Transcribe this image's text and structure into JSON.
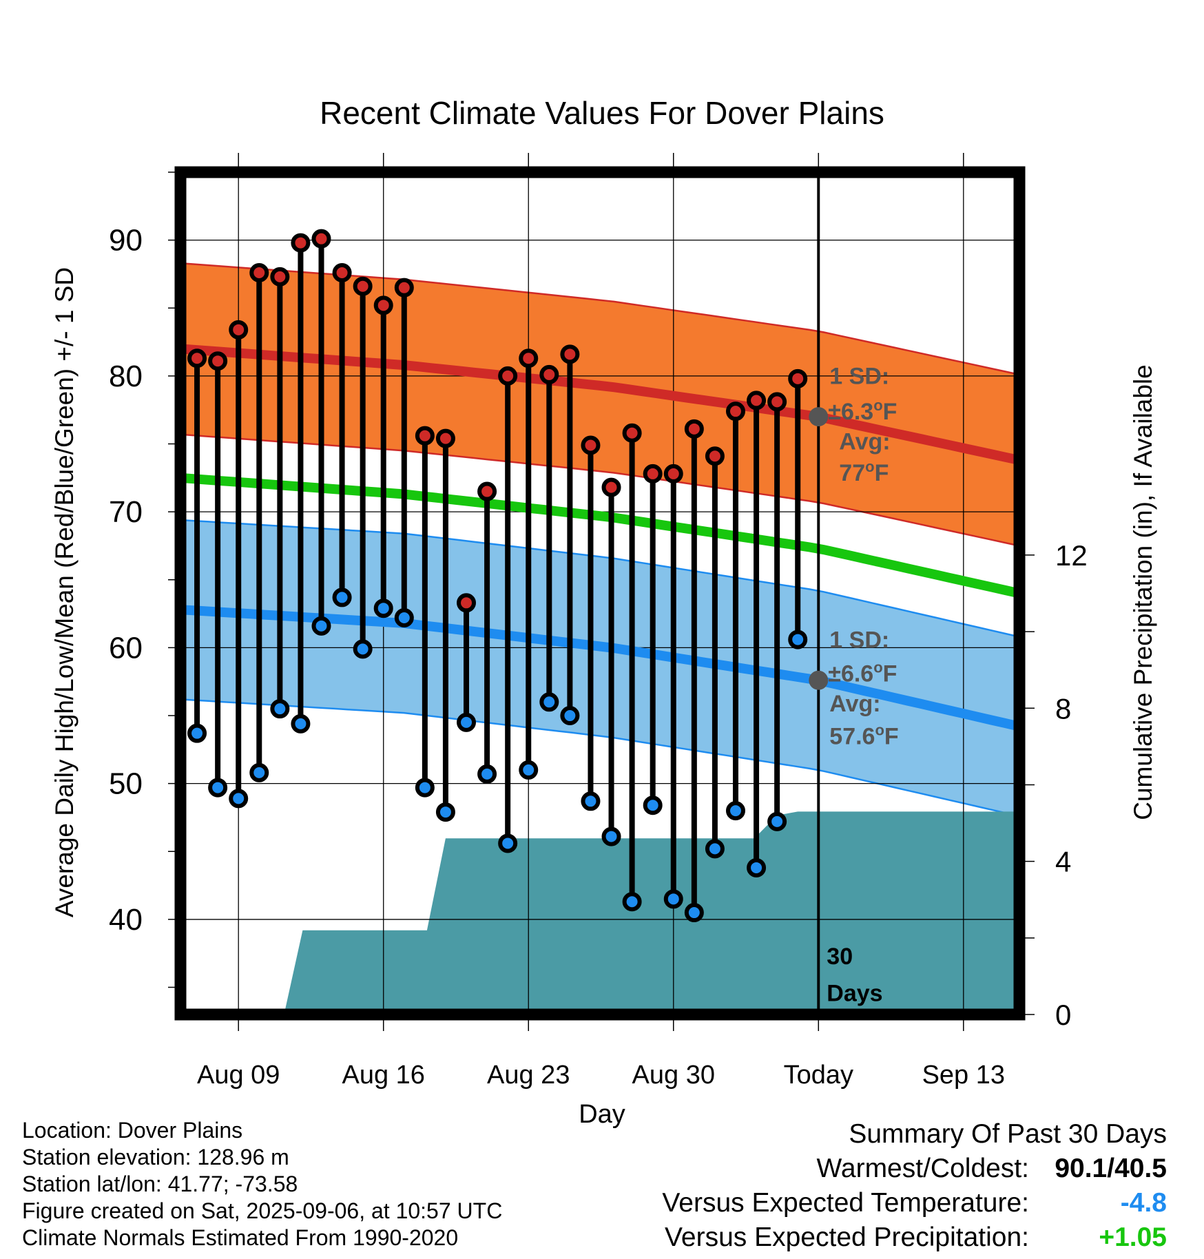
{
  "chart_data": {
    "type": "line",
    "title": "Recent Climate Values For Dover Plains",
    "xlabel": "Day",
    "ylabel": "Average Daily High/Low/Mean (Red/Blue/Green) +/- 1 SD",
    "y2label": "Cumulative Precipitation (in), If Available",
    "x_tick_labels": [
      "Aug 09",
      "Aug 16",
      "Aug 23",
      "Aug 30",
      "Today",
      "Sep 13"
    ],
    "y_ticks": [
      "40",
      "50",
      "60",
      "70",
      "80",
      "90"
    ],
    "y2_ticks": [
      "0",
      "4",
      "8",
      "12"
    ],
    "ylim": [
      33,
      95
    ],
    "y2lim": [
      0,
      22
    ],
    "x_range_days": [
      -30.8,
      9.7
    ],
    "x_tick_positions_days": [
      -28,
      -21,
      -14,
      -7,
      0,
      7
    ],
    "grid": true,
    "colors": {
      "high_band": "#f47a2e",
      "high_line": "#cf2a27",
      "low_band": "#85c2ea",
      "low_line": "#1e8cf0",
      "mean_line": "#17c60e",
      "precip": "#4b9ba5",
      "high_marker": "#cf2a27",
      "low_marker": "#1e8cf0",
      "stem": "#000000",
      "today_marker": "#555555",
      "annotation": "#555555",
      "temp_anomaly": "#1e8cf0",
      "precip_anomaly": "#17c60e"
    },
    "normals": {
      "x": [
        -30.8,
        -20,
        -10,
        0,
        9.7
      ],
      "high_avg": [
        82.0,
        80.8,
        79.2,
        77.0,
        73.8
      ],
      "high_sd": 6.3,
      "low_avg": [
        62.8,
        61.8,
        60.0,
        57.6,
        54.2
      ],
      "low_sd": 6.6,
      "mean_avg": [
        72.5,
        71.3,
        69.6,
        67.3,
        64.0
      ]
    },
    "series": [
      {
        "name": "High",
        "x": [
          -30,
          -29,
          -28,
          -27,
          -26,
          -25,
          -24,
          -23,
          -22,
          -21,
          -20,
          -19,
          -18,
          -17,
          -16,
          -15,
          -14,
          -13,
          -12,
          -11,
          -10,
          -9,
          -8,
          -7,
          -6,
          -5,
          -4,
          -3,
          -2,
          -1
        ],
        "values": [
          81.3,
          81.1,
          83.4,
          87.6,
          87.3,
          89.8,
          90.1,
          87.6,
          86.6,
          85.2,
          86.5,
          75.6,
          75.4,
          63.3,
          71.5,
          80.0,
          81.3,
          80.1,
          81.6,
          74.9,
          71.8,
          75.8,
          72.8,
          72.8,
          76.1,
          74.1,
          77.4,
          78.2,
          78.1,
          79.8
        ]
      },
      {
        "name": "Low",
        "x": [
          -30,
          -29,
          -28,
          -27,
          -26,
          -25,
          -24,
          -23,
          -22,
          -21,
          -20,
          -19,
          -18,
          -17,
          -16,
          -15,
          -14,
          -13,
          -12,
          -11,
          -10,
          -9,
          -8,
          -7,
          -6,
          -5,
          -4,
          -3,
          -2,
          -1
        ],
        "values": [
          53.7,
          49.7,
          48.9,
          50.8,
          55.5,
          54.4,
          61.6,
          63.7,
          59.9,
          62.9,
          62.2,
          49.7,
          47.9,
          54.5,
          50.7,
          45.6,
          51.0,
          56.0,
          55.0,
          48.7,
          46.1,
          41.3,
          48.4,
          41.5,
          40.5,
          45.2,
          48.0,
          43.8,
          47.2,
          60.6
        ]
      },
      {
        "name": "Cumulative Precipitation",
        "type": "area",
        "x": [
          -30.8,
          -25.8,
          -24.9,
          -18.9,
          -18.0,
          -6.6,
          -3.1,
          -2.0,
          -1.0,
          9.7
        ],
        "values": [
          0,
          0,
          2.2,
          2.2,
          4.6,
          4.6,
          4.6,
          5.2,
          5.3,
          5.3
        ]
      }
    ],
    "annotations": {
      "high_sd_label": "1 SD:",
      "high_sd_value": "±6.3",
      "high_avg_label": "Avg:",
      "high_avg_value": "77",
      "low_sd_label": "1 SD:",
      "low_sd_value": "±6.6",
      "low_avg_label": "Avg:",
      "low_avg_value": "57.6",
      "degree_unit": "o",
      "temp_unit": "F",
      "days_count": "30",
      "days_word": "Days"
    }
  },
  "info": {
    "location": "Location: Dover Plains",
    "elevation": "Station elevation: 128.96 m",
    "latlon": "Station lat/lon: 41.77; -73.58",
    "created": "Figure created on Sat, 2025-09-06, at 10:57 UTC",
    "normals": "Climate Normals Estimated From 1990-2020"
  },
  "summary": {
    "title": "Summary Of Past 30 Days",
    "warm_cold_label": "Warmest/Coldest:",
    "warm_cold_value": "90.1/40.5",
    "temp_label": "Versus Expected Temperature:",
    "temp_value": "-4.8",
    "precip_label": "Versus Expected Precipitation:",
    "precip_value": "+1.05"
  }
}
